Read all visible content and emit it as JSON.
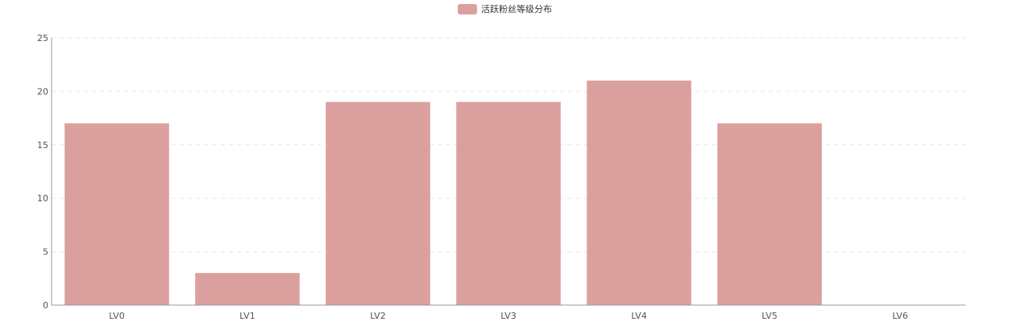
{
  "chart_data": {
    "type": "bar",
    "categories": [
      "LV0",
      "LV1",
      "LV2",
      "LV3",
      "LV4",
      "LV5",
      "LV6"
    ],
    "series": [
      {
        "name": "活跃粉丝等级分布",
        "values": [
          17,
          3,
          19,
          19,
          21,
          17,
          0
        ],
        "color": "#dba09e"
      }
    ],
    "ylim": [
      0,
      25
    ],
    "yticks": [
      0,
      5,
      10,
      15,
      20,
      25
    ],
    "grid": true,
    "legend": "top-center",
    "colors": {
      "bar": "#dba09e",
      "axis": "#999999",
      "grid": "#e8e8e8",
      "label": "#555555"
    }
  }
}
